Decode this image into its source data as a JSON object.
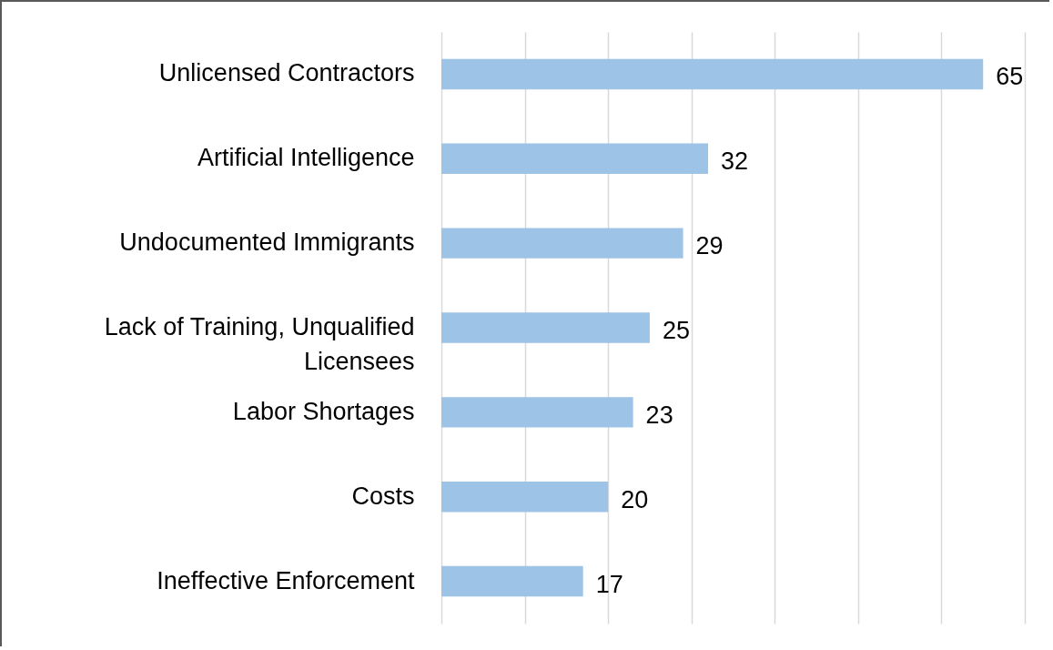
{
  "chart_data": {
    "type": "bar",
    "orientation": "horizontal",
    "categories": [
      "Unlicensed Contractors",
      "Artificial Intelligence",
      "Undocumented Immigrants",
      "Lack of Training, Unqualified Licensees",
      "Labor Shortages",
      "Costs",
      "Ineffective Enforcement"
    ],
    "values": [
      65,
      32,
      29,
      25,
      23,
      20,
      17
    ],
    "color": "#9dc3e6",
    "data_labels": true,
    "grid": "x",
    "tick_labels": "y",
    "xlim": [
      0,
      70
    ],
    "xticks": [
      {
        "value": 0,
        "label": null
      },
      {
        "value": 10,
        "label": null
      },
      {
        "value": 20,
        "label": null
      },
      {
        "value": 30,
        "label": null
      },
      {
        "value": 40,
        "label": null
      },
      {
        "value": 50,
        "label": null
      },
      {
        "value": 60,
        "label": null
      },
      {
        "value": 70,
        "label": null
      }
    ]
  }
}
